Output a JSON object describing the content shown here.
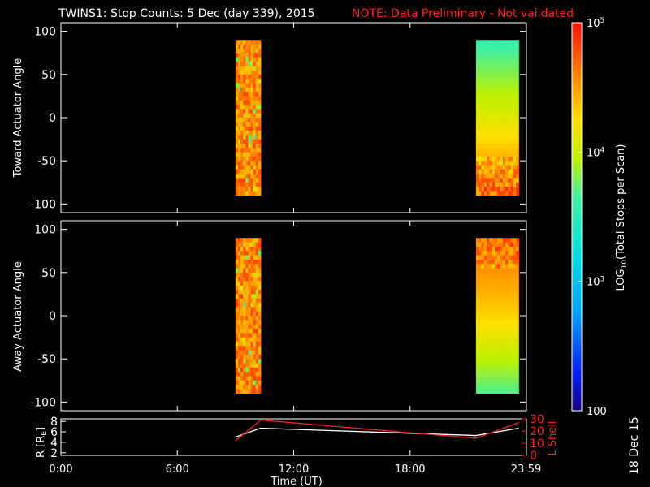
{
  "title": {
    "main": "TWINS1: Stop Counts:  5 Dec (day 339), 2015",
    "note": "NOTE: Data Preliminary - Not validated",
    "note_color": "#ff2020"
  },
  "date_stamp": "18 Dec 15",
  "chart_data": [
    {
      "type": "heatmap",
      "ylabel": "Toward Actuator Angle",
      "yticks": [
        "100",
        "50",
        "0",
        "-50",
        "-100"
      ],
      "ylim": [
        -110,
        110
      ],
      "xlim": [
        0,
        24
      ],
      "blocks": [
        {
          "x_start": 9.0,
          "x_end": 10.3,
          "y_start": -90,
          "y_end": 90,
          "dominant_log10": 4.6,
          "pattern": "noisy"
        },
        {
          "x_start": 21.4,
          "x_end": 23.6,
          "y_start": -90,
          "y_end": 90,
          "top_log10": 3.6,
          "mid_log10": 4.1,
          "bottom_log10": 4.7,
          "pattern": "smooth-gradient-with-noisy-bottom"
        }
      ]
    },
    {
      "type": "heatmap",
      "ylabel": "Away Actuator Angle",
      "yticks": [
        "100",
        "50",
        "0",
        "-50",
        "-100"
      ],
      "ylim": [
        -110,
        110
      ],
      "xlim": [
        0,
        24
      ],
      "blocks": [
        {
          "x_start": 9.0,
          "x_end": 10.3,
          "y_start": -90,
          "y_end": 90,
          "dominant_log10": 4.6,
          "pattern": "noisy"
        },
        {
          "x_start": 21.4,
          "x_end": 23.6,
          "y_start": -90,
          "y_end": 90,
          "top_log10": 4.7,
          "mid_log10": 4.3,
          "bottom_log10": 3.7,
          "pattern": "noisy-top-smooth-gradient"
        }
      ]
    },
    {
      "type": "line",
      "ylabel_left": "R [R",
      "ylabel_left_sub": "E",
      "ylabel_right": "L Shell",
      "yticks_left": [
        "8",
        "6",
        "4",
        "2"
      ],
      "ylim_left": [
        1.5,
        8.5
      ],
      "yticks_right": [
        "30",
        "20",
        "10",
        "0"
      ],
      "ylim_right": [
        0,
        30
      ],
      "xlim": [
        0,
        24
      ],
      "xticks": [
        "0:00",
        "6:00",
        "12:00",
        "18:00",
        "23:59"
      ],
      "xtick_values": [
        0,
        6,
        12,
        18,
        23.98
      ],
      "xlabel": "Time (UT)",
      "series": [
        {
          "axis": "left",
          "color": "#ffffff",
          "x": [
            9.0,
            10.3,
            21.4,
            23.6
          ],
          "y": [
            5.0,
            6.7,
            5.3,
            6.7
          ]
        },
        {
          "axis": "right",
          "color": "#ff2020",
          "x": [
            9.0,
            10.3,
            21.4,
            23.6
          ],
          "y": [
            12,
            29,
            14,
            27
          ]
        }
      ]
    }
  ],
  "colorbar": {
    "label_pre": "LOG",
    "label_sub": "10",
    "label_post": "(Total Stops per Scan)",
    "ticks": [
      {
        "base": "10",
        "exp": "5",
        "log": 5
      },
      {
        "base": "10",
        "exp": "4",
        "log": 4
      },
      {
        "base": "10",
        "exp": "3",
        "log": 3
      },
      {
        "base": "100",
        "exp": "",
        "log": 2
      }
    ],
    "range_log": [
      2,
      5
    ]
  }
}
